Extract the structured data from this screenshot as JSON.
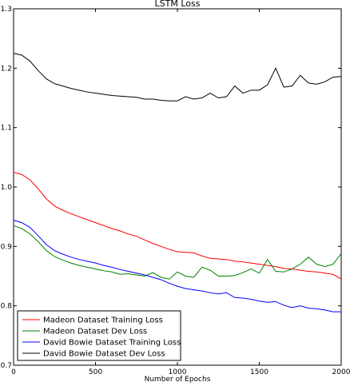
{
  "chart_data": {
    "type": "line",
    "title": "LSTM Loss",
    "xlabel": "Number of Epochs",
    "ylabel": "",
    "xlim": [
      0,
      2000
    ],
    "ylim": [
      0.7,
      1.3
    ],
    "xticks": [
      "0",
      "500",
      "1000",
      "1500",
      "2000"
    ],
    "yticks": [
      "0.7",
      "0.8",
      "0.9",
      "1.0",
      "1.1",
      "1.2",
      "1.3"
    ],
    "grid": false,
    "legend": "lower-left",
    "series": [
      {
        "name": "Madeon Dataset Training Loss",
        "color": "#ff0000",
        "x": [
          0,
          50,
          100,
          150,
          200,
          250,
          300,
          350,
          400,
          450,
          500,
          550,
          600,
          650,
          700,
          750,
          800,
          850,
          900,
          950,
          1000,
          1050,
          1100,
          1150,
          1200,
          1250,
          1300,
          1350,
          1400,
          1450,
          1500,
          1550,
          1600,
          1650,
          1700,
          1750,
          1800,
          1850,
          1900,
          1950,
          2000
        ],
        "y": [
          1.025,
          1.021,
          1.012,
          0.997,
          0.98,
          0.968,
          0.961,
          0.955,
          0.95,
          0.945,
          0.94,
          0.935,
          0.93,
          0.926,
          0.921,
          0.917,
          0.911,
          0.905,
          0.9,
          0.895,
          0.891,
          0.89,
          0.889,
          0.884,
          0.88,
          0.879,
          0.878,
          0.875,
          0.874,
          0.872,
          0.87,
          0.868,
          0.866,
          0.863,
          0.862,
          0.86,
          0.858,
          0.857,
          0.855,
          0.853,
          0.845
        ]
      },
      {
        "name": "Madeon Dataset Dev Loss",
        "color": "#008000",
        "x": [
          0,
          50,
          100,
          150,
          200,
          250,
          300,
          350,
          400,
          450,
          500,
          550,
          600,
          650,
          700,
          750,
          800,
          850,
          900,
          950,
          1000,
          1050,
          1100,
          1150,
          1200,
          1250,
          1300,
          1350,
          1400,
          1450,
          1500,
          1550,
          1600,
          1650,
          1700,
          1750,
          1800,
          1850,
          1900,
          1950,
          2000
        ],
        "y": [
          0.935,
          0.93,
          0.921,
          0.908,
          0.893,
          0.883,
          0.877,
          0.872,
          0.868,
          0.865,
          0.862,
          0.859,
          0.857,
          0.853,
          0.854,
          0.852,
          0.85,
          0.856,
          0.848,
          0.845,
          0.857,
          0.85,
          0.848,
          0.865,
          0.86,
          0.85,
          0.85,
          0.851,
          0.856,
          0.862,
          0.855,
          0.878,
          0.858,
          0.857,
          0.862,
          0.87,
          0.882,
          0.87,
          0.866,
          0.87,
          0.888
        ]
      },
      {
        "name": "David Bowie Dataset Training Loss",
        "color": "#0000ff",
        "x": [
          0,
          50,
          100,
          150,
          200,
          250,
          300,
          350,
          400,
          450,
          500,
          550,
          600,
          650,
          700,
          750,
          800,
          850,
          900,
          950,
          1000,
          1050,
          1100,
          1150,
          1200,
          1250,
          1300,
          1350,
          1400,
          1450,
          1500,
          1550,
          1600,
          1650,
          1700,
          1750,
          1800,
          1850,
          1900,
          1950,
          2000
        ],
        "y": [
          0.944,
          0.94,
          0.932,
          0.918,
          0.903,
          0.893,
          0.887,
          0.882,
          0.878,
          0.875,
          0.872,
          0.868,
          0.865,
          0.861,
          0.858,
          0.855,
          0.852,
          0.848,
          0.844,
          0.838,
          0.833,
          0.829,
          0.827,
          0.825,
          0.822,
          0.82,
          0.822,
          0.814,
          0.813,
          0.811,
          0.808,
          0.806,
          0.807,
          0.801,
          0.797,
          0.8,
          0.796,
          0.795,
          0.793,
          0.79,
          0.79
        ]
      },
      {
        "name": "David Bowie Dataset Dev Loss",
        "color": "#000000",
        "x": [
          0,
          50,
          100,
          150,
          200,
          250,
          300,
          350,
          400,
          450,
          500,
          550,
          600,
          650,
          700,
          750,
          800,
          850,
          900,
          950,
          1000,
          1050,
          1100,
          1150,
          1200,
          1250,
          1300,
          1350,
          1400,
          1450,
          1500,
          1550,
          1600,
          1650,
          1700,
          1750,
          1800,
          1850,
          1900,
          1950,
          2000
        ],
        "y": [
          1.225,
          1.222,
          1.212,
          1.196,
          1.182,
          1.174,
          1.17,
          1.166,
          1.163,
          1.16,
          1.158,
          1.156,
          1.154,
          1.153,
          1.152,
          1.151,
          1.148,
          1.148,
          1.146,
          1.145,
          1.145,
          1.152,
          1.148,
          1.15,
          1.158,
          1.15,
          1.152,
          1.17,
          1.158,
          1.163,
          1.163,
          1.172,
          1.2,
          1.168,
          1.17,
          1.188,
          1.175,
          1.173,
          1.177,
          1.185,
          1.186
        ]
      }
    ]
  }
}
